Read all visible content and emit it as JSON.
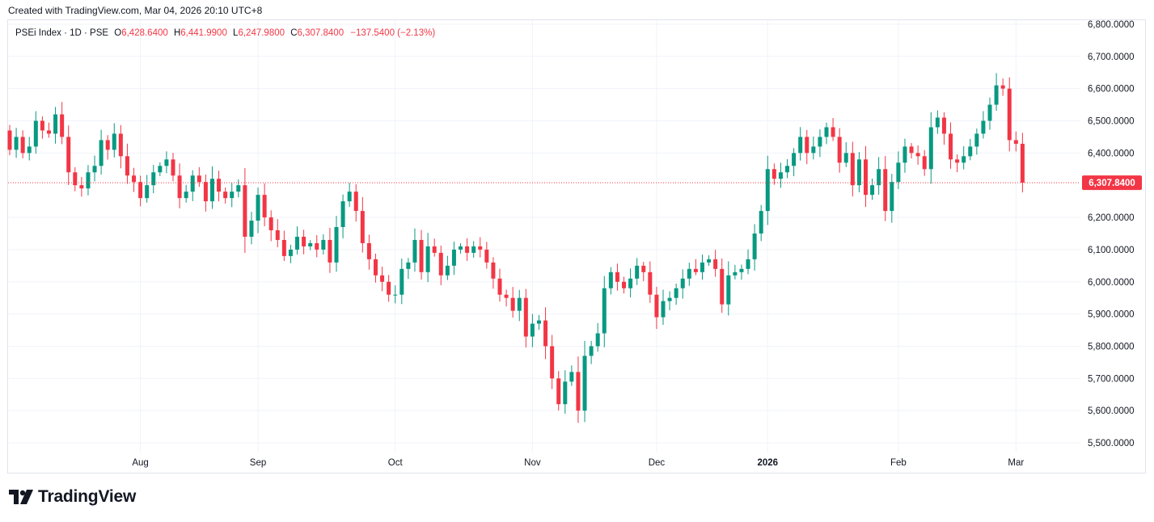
{
  "header": {
    "created_text": "Created with TradingView.com, Mar 04, 2026 20:10 UTC+8"
  },
  "legend": {
    "symbol": "PSEi Index · 1D · PSE",
    "o_label": "O",
    "o_value": "6,428.6400",
    "h_label": "H",
    "h_value": "6,441.9900",
    "l_label": "L",
    "l_value": "6,247.9800",
    "c_label": "C",
    "c_value": "6,307.8400",
    "change": "−137.5400 (−2.13%)"
  },
  "footer": {
    "brand": "TradingView",
    "logo_icon": "tradingview-logo-icon"
  },
  "colors": {
    "up": "#089981",
    "down": "#f23645",
    "grid": "#f0f3fa",
    "axis_text": "#131722"
  },
  "chart_data": {
    "type": "candlestick",
    "title": "PSEi Index · 1D · PSE",
    "price_line": {
      "value": 6307.84,
      "label": "6,307.8400"
    },
    "y_axis": {
      "ylim": [
        5450,
        6810
      ],
      "ticks": [
        5500,
        5600,
        5700,
        5800,
        5900,
        6000,
        6100,
        6200,
        6400,
        6500,
        6600,
        6700,
        6800
      ],
      "tick_labels": [
        "5,500.0000",
        "5,600.0000",
        "5,700.0000",
        "5,800.0000",
        "5,900.0000",
        "6,000.0000",
        "6,100.0000",
        "6,200.0000",
        "6,400.0000",
        "6,500.0000",
        "6,600.0000",
        "6,700.0000",
        "6,800.0000"
      ]
    },
    "x_axis": {
      "labels": [
        {
          "label": "Aug",
          "bar": 20
        },
        {
          "label": "Sep",
          "bar": 38
        },
        {
          "label": "Oct",
          "bar": 59
        },
        {
          "label": "Nov",
          "bar": 80
        },
        {
          "label": "Dec",
          "bar": 99
        },
        {
          "label": "2026",
          "bar": 116
        },
        {
          "label": "Feb",
          "bar": 136
        },
        {
          "label": "Mar",
          "bar": 154
        }
      ]
    },
    "grid": true,
    "closes": [
      6410,
      6450,
      6400,
      6420,
      6500,
      6470,
      6460,
      6520,
      6450,
      6340,
      6300,
      6290,
      6340,
      6360,
      6440,
      6410,
      6460,
      6390,
      6330,
      6310,
      6260,
      6300,
      6340,
      6360,
      6380,
      6330,
      6260,
      6280,
      6330,
      6310,
      6250,
      6320,
      6280,
      6260,
      6280,
      6300,
      6140,
      6190,
      6270,
      6200,
      6160,
      6130,
      6080,
      6100,
      6140,
      6110,
      6120,
      6100,
      6130,
      6060,
      6170,
      6250,
      6280,
      6220,
      6120,
      6070,
      6020,
      6000,
      5960,
      5960,
      6040,
      6060,
      6130,
      6030,
      6110,
      6090,
      6020,
      6050,
      6100,
      6110,
      6090,
      6110,
      6100,
      6060,
      6010,
      5960,
      5950,
      5910,
      5950,
      5830,
      5870,
      5880,
      5800,
      5700,
      5620,
      5690,
      5720,
      5600,
      5770,
      5800,
      5840,
      5980,
      6030,
      6000,
      5980,
      6010,
      6050,
      6030,
      5960,
      5890,
      5940,
      5950,
      5980,
      6010,
      6040,
      6030,
      6060,
      6070,
      6040,
      5930,
      6020,
      6030,
      6040,
      6070,
      6150,
      6220,
      6350,
      6320,
      6340,
      6360,
      6400,
      6450,
      6400,
      6420,
      6450,
      6480,
      6450,
      6370,
      6400,
      6300,
      6380,
      6270,
      6300,
      6350,
      6220,
      6310,
      6370,
      6420,
      6400,
      6390,
      6350,
      6480,
      6510,
      6460,
      6380,
      6370,
      6390,
      6420,
      6460,
      6500,
      6550,
      6610,
      6600,
      6440,
      6428.64,
      6307.84
    ]
  }
}
